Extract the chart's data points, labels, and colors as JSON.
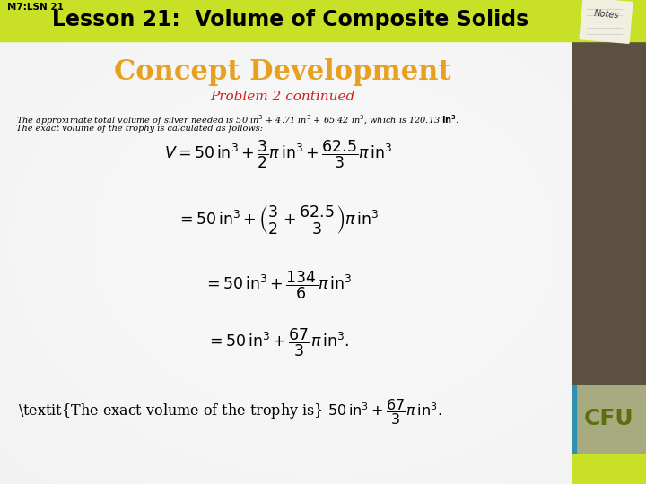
{
  "header_text": "Lesson 21:  Volume of Composite Solids",
  "header_label": "M7:LSN 21",
  "header_bg_color": "#c8e025",
  "concept_title": "Concept Development",
  "concept_title_color": "#e8a020",
  "problem_subtitle": "Problem 2 continued",
  "problem_subtitle_color": "#cc2222",
  "right_sidebar_color": "#5c5040",
  "cfu_box_color": "#a8aa80",
  "cfu_text": "CFU",
  "cfu_text_color": "#5a7010",
  "green_bar_bottom_color": "#c8e025"
}
